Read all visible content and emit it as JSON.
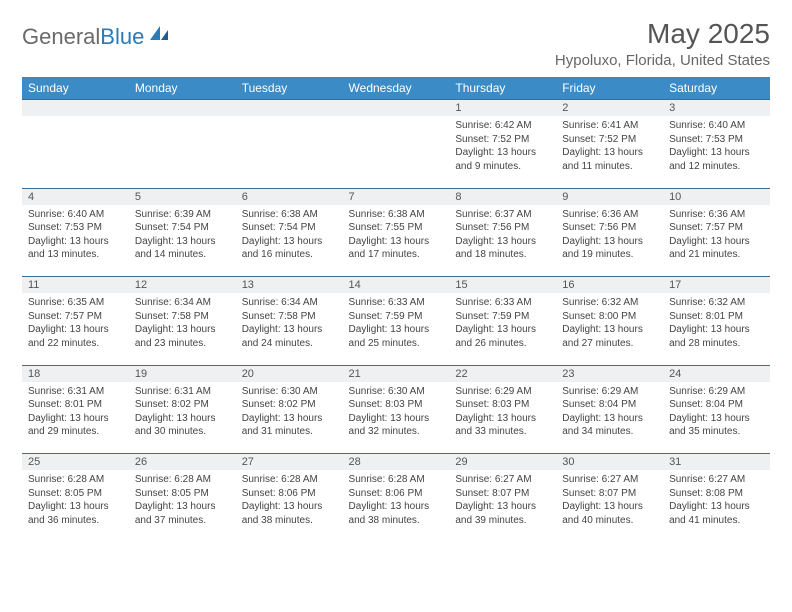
{
  "logo": {
    "word1": "General",
    "word2": "Blue"
  },
  "title": "May 2025",
  "location": "Hypoluxo, Florida, United States",
  "colors": {
    "header_bg": "#3b8bc6",
    "header_text": "#ffffff",
    "daynum_bg": "#eef0f2",
    "row_divider": "#3b6e94",
    "logo_gray": "#6a6a6a",
    "logo_blue": "#2a7ab8",
    "title_color": "#555555",
    "location_color": "#666666",
    "body_text": "#444444",
    "page_bg": "#ffffff"
  },
  "typography": {
    "month_title_pt": 28,
    "location_pt": 15,
    "weekday_pt": 12,
    "daynum_pt": 11,
    "detail_pt": 10,
    "logo_pt": 22
  },
  "weekdays": [
    "Sunday",
    "Monday",
    "Tuesday",
    "Wednesday",
    "Thursday",
    "Friday",
    "Saturday"
  ],
  "weeks": [
    [
      {
        "n": "",
        "lines": []
      },
      {
        "n": "",
        "lines": []
      },
      {
        "n": "",
        "lines": []
      },
      {
        "n": "",
        "lines": []
      },
      {
        "n": "1",
        "lines": [
          "Sunrise: 6:42 AM",
          "Sunset: 7:52 PM",
          "Daylight: 13 hours",
          "and 9 minutes."
        ]
      },
      {
        "n": "2",
        "lines": [
          "Sunrise: 6:41 AM",
          "Sunset: 7:52 PM",
          "Daylight: 13 hours",
          "and 11 minutes."
        ]
      },
      {
        "n": "3",
        "lines": [
          "Sunrise: 6:40 AM",
          "Sunset: 7:53 PM",
          "Daylight: 13 hours",
          "and 12 minutes."
        ]
      }
    ],
    [
      {
        "n": "4",
        "lines": [
          "Sunrise: 6:40 AM",
          "Sunset: 7:53 PM",
          "Daylight: 13 hours",
          "and 13 minutes."
        ]
      },
      {
        "n": "5",
        "lines": [
          "Sunrise: 6:39 AM",
          "Sunset: 7:54 PM",
          "Daylight: 13 hours",
          "and 14 minutes."
        ]
      },
      {
        "n": "6",
        "lines": [
          "Sunrise: 6:38 AM",
          "Sunset: 7:54 PM",
          "Daylight: 13 hours",
          "and 16 minutes."
        ]
      },
      {
        "n": "7",
        "lines": [
          "Sunrise: 6:38 AM",
          "Sunset: 7:55 PM",
          "Daylight: 13 hours",
          "and 17 minutes."
        ]
      },
      {
        "n": "8",
        "lines": [
          "Sunrise: 6:37 AM",
          "Sunset: 7:56 PM",
          "Daylight: 13 hours",
          "and 18 minutes."
        ]
      },
      {
        "n": "9",
        "lines": [
          "Sunrise: 6:36 AM",
          "Sunset: 7:56 PM",
          "Daylight: 13 hours",
          "and 19 minutes."
        ]
      },
      {
        "n": "10",
        "lines": [
          "Sunrise: 6:36 AM",
          "Sunset: 7:57 PM",
          "Daylight: 13 hours",
          "and 21 minutes."
        ]
      }
    ],
    [
      {
        "n": "11",
        "lines": [
          "Sunrise: 6:35 AM",
          "Sunset: 7:57 PM",
          "Daylight: 13 hours",
          "and 22 minutes."
        ]
      },
      {
        "n": "12",
        "lines": [
          "Sunrise: 6:34 AM",
          "Sunset: 7:58 PM",
          "Daylight: 13 hours",
          "and 23 minutes."
        ]
      },
      {
        "n": "13",
        "lines": [
          "Sunrise: 6:34 AM",
          "Sunset: 7:58 PM",
          "Daylight: 13 hours",
          "and 24 minutes."
        ]
      },
      {
        "n": "14",
        "lines": [
          "Sunrise: 6:33 AM",
          "Sunset: 7:59 PM",
          "Daylight: 13 hours",
          "and 25 minutes."
        ]
      },
      {
        "n": "15",
        "lines": [
          "Sunrise: 6:33 AM",
          "Sunset: 7:59 PM",
          "Daylight: 13 hours",
          "and 26 minutes."
        ]
      },
      {
        "n": "16",
        "lines": [
          "Sunrise: 6:32 AM",
          "Sunset: 8:00 PM",
          "Daylight: 13 hours",
          "and 27 minutes."
        ]
      },
      {
        "n": "17",
        "lines": [
          "Sunrise: 6:32 AM",
          "Sunset: 8:01 PM",
          "Daylight: 13 hours",
          "and 28 minutes."
        ]
      }
    ],
    [
      {
        "n": "18",
        "lines": [
          "Sunrise: 6:31 AM",
          "Sunset: 8:01 PM",
          "Daylight: 13 hours",
          "and 29 minutes."
        ]
      },
      {
        "n": "19",
        "lines": [
          "Sunrise: 6:31 AM",
          "Sunset: 8:02 PM",
          "Daylight: 13 hours",
          "and 30 minutes."
        ]
      },
      {
        "n": "20",
        "lines": [
          "Sunrise: 6:30 AM",
          "Sunset: 8:02 PM",
          "Daylight: 13 hours",
          "and 31 minutes."
        ]
      },
      {
        "n": "21",
        "lines": [
          "Sunrise: 6:30 AM",
          "Sunset: 8:03 PM",
          "Daylight: 13 hours",
          "and 32 minutes."
        ]
      },
      {
        "n": "22",
        "lines": [
          "Sunrise: 6:29 AM",
          "Sunset: 8:03 PM",
          "Daylight: 13 hours",
          "and 33 minutes."
        ]
      },
      {
        "n": "23",
        "lines": [
          "Sunrise: 6:29 AM",
          "Sunset: 8:04 PM",
          "Daylight: 13 hours",
          "and 34 minutes."
        ]
      },
      {
        "n": "24",
        "lines": [
          "Sunrise: 6:29 AM",
          "Sunset: 8:04 PM",
          "Daylight: 13 hours",
          "and 35 minutes."
        ]
      }
    ],
    [
      {
        "n": "25",
        "lines": [
          "Sunrise: 6:28 AM",
          "Sunset: 8:05 PM",
          "Daylight: 13 hours",
          "and 36 minutes."
        ]
      },
      {
        "n": "26",
        "lines": [
          "Sunrise: 6:28 AM",
          "Sunset: 8:05 PM",
          "Daylight: 13 hours",
          "and 37 minutes."
        ]
      },
      {
        "n": "27",
        "lines": [
          "Sunrise: 6:28 AM",
          "Sunset: 8:06 PM",
          "Daylight: 13 hours",
          "and 38 minutes."
        ]
      },
      {
        "n": "28",
        "lines": [
          "Sunrise: 6:28 AM",
          "Sunset: 8:06 PM",
          "Daylight: 13 hours",
          "and 38 minutes."
        ]
      },
      {
        "n": "29",
        "lines": [
          "Sunrise: 6:27 AM",
          "Sunset: 8:07 PM",
          "Daylight: 13 hours",
          "and 39 minutes."
        ]
      },
      {
        "n": "30",
        "lines": [
          "Sunrise: 6:27 AM",
          "Sunset: 8:07 PM",
          "Daylight: 13 hours",
          "and 40 minutes."
        ]
      },
      {
        "n": "31",
        "lines": [
          "Sunrise: 6:27 AM",
          "Sunset: 8:08 PM",
          "Daylight: 13 hours",
          "and 41 minutes."
        ]
      }
    ]
  ]
}
